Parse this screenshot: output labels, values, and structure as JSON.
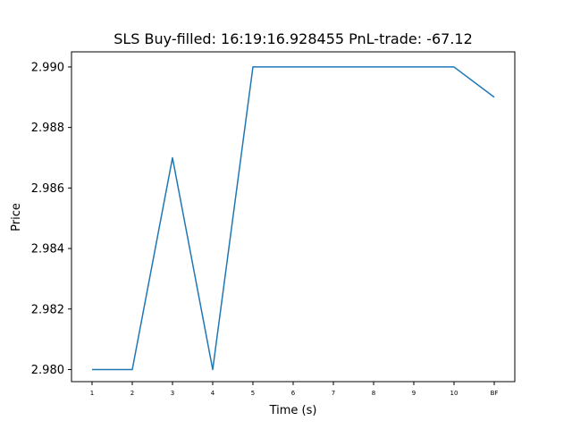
{
  "chart_data": {
    "type": "line",
    "title": "SLS  Buy-filled:  16:19:16.928455  PnL-trade:  -67.12",
    "xlabel": "Time (s)",
    "ylabel": "Price",
    "categories": [
      "1",
      "2",
      "3",
      "4",
      "5",
      "6",
      "7",
      "8",
      "9",
      "10",
      "BF"
    ],
    "series": [
      {
        "values": [
          2.98,
          2.98,
          2.987,
          2.98,
          2.99,
          2.99,
          2.99,
          2.99,
          2.99,
          2.99,
          2.989
        ],
        "color": "#1f77b4"
      }
    ],
    "yticks": [
      "2.980",
      "2.982",
      "2.984",
      "2.986",
      "2.988",
      "2.990"
    ],
    "ylim": [
      2.9796,
      2.9905
    ],
    "grid": false,
    "legend": "none"
  }
}
